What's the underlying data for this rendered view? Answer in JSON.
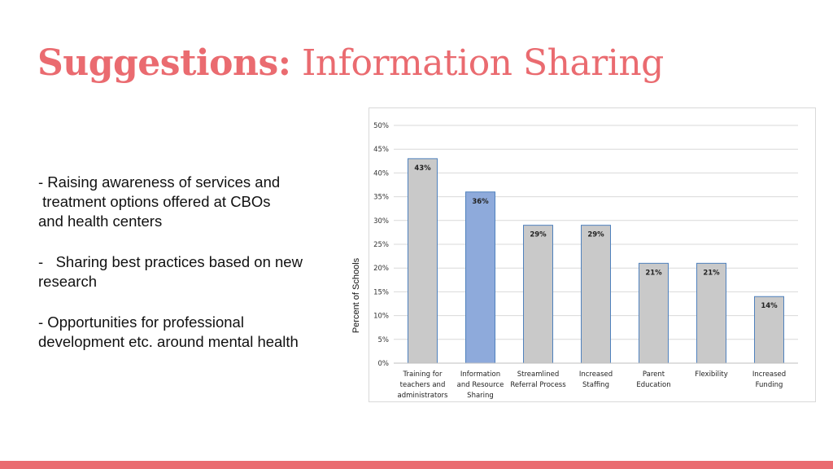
{
  "slide": {
    "title_bold": "Suggestions:",
    "title_light": "Information Sharing",
    "bullets": [
      "- Raising awareness of services and\n treatment options offered at CBOs\nand health centers",
      "-   Sharing best practices based on new\nresearch",
      "- Opportunities for professional\ndevelopment etc. around mental health"
    ],
    "accent_color": "#ea6b70"
  },
  "chart_data": {
    "type": "bar",
    "ylabel": "Percent of Schools",
    "ylim": [
      0,
      50
    ],
    "yticks": [
      "0%",
      "5%",
      "10%",
      "15%",
      "20%",
      "25%",
      "30%",
      "35%",
      "40%",
      "45%",
      "50%"
    ],
    "grid": true,
    "categories": [
      [
        "Training for",
        "teachers and",
        "administrators"
      ],
      [
        "Information",
        "and Resource",
        "Sharing"
      ],
      [
        "Streamlined",
        "Referral Process"
      ],
      [
        "Increased",
        "Staffing"
      ],
      [
        "Parent",
        "Education"
      ],
      [
        "Flexibility"
      ],
      [
        "Increased",
        "Funding"
      ]
    ],
    "values": [
      43,
      36,
      29,
      29,
      21,
      21,
      14
    ],
    "labels": [
      "43%",
      "36%",
      "29%",
      "29%",
      "21%",
      "21%",
      "14%"
    ],
    "highlight_index": 1,
    "colors": {
      "bar": "#c9c9c9",
      "highlight": "#8eaadb",
      "bar_edge": "#4f81bd",
      "grid": "#d9d9d9"
    }
  }
}
